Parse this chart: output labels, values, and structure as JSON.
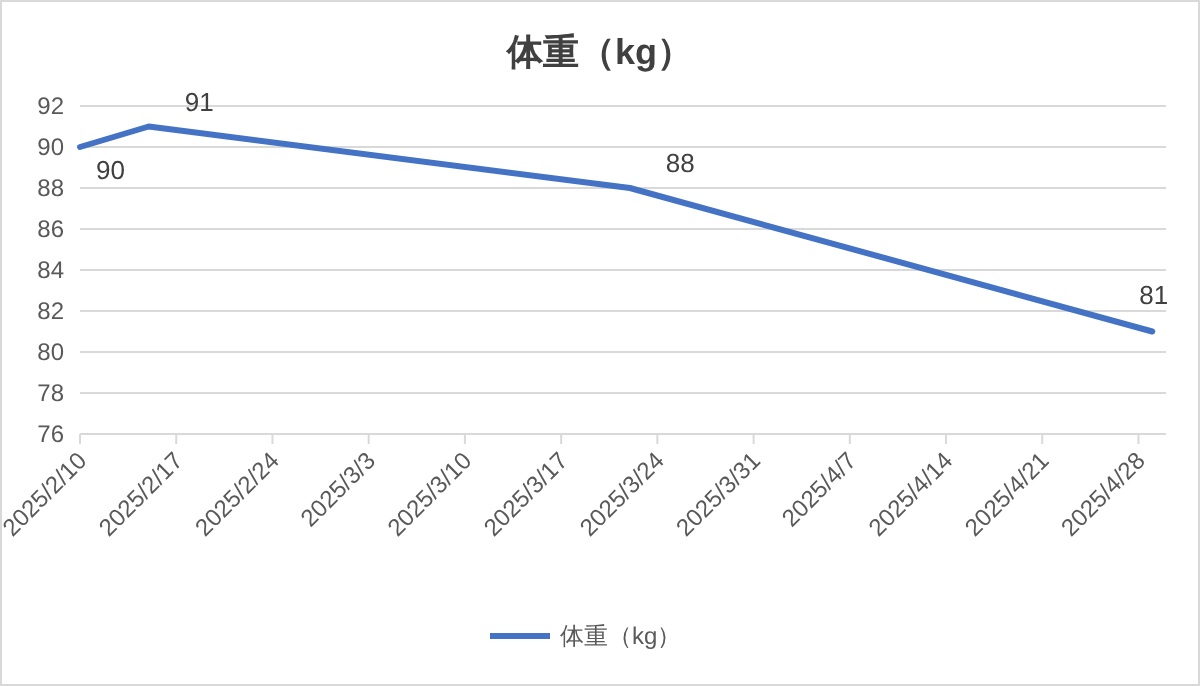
{
  "chart_data": {
    "type": "line",
    "title": "体重（kg）",
    "x": [
      "2025-02-10",
      "2025-02-15",
      "2025-03-22",
      "2025-04-29"
    ],
    "series": [
      {
        "name": "体重（kg）",
        "color": "#4472c4",
        "values": [
          90,
          91,
          88,
          81
        ]
      }
    ],
    "xlim": [
      "2025-02-10",
      "2025-04-30"
    ],
    "xticks": [
      {
        "value": "2025-02-10",
        "label": "2025/2/10"
      },
      {
        "value": "2025-02-17",
        "label": "2025/2/17"
      },
      {
        "value": "2025-02-24",
        "label": "2025/2/24"
      },
      {
        "value": "2025-03-03",
        "label": "2025/3/3"
      },
      {
        "value": "2025-03-10",
        "label": "2025/3/10"
      },
      {
        "value": "2025-03-17",
        "label": "2025/3/17"
      },
      {
        "value": "2025-03-24",
        "label": "2025/3/24"
      },
      {
        "value": "2025-03-31",
        "label": "2025/3/31"
      },
      {
        "value": "2025-04-07",
        "label": "2025/4/7"
      },
      {
        "value": "2025-04-14",
        "label": "2025/4/14"
      },
      {
        "value": "2025-04-21",
        "label": "2025/4/21"
      },
      {
        "value": "2025-04-28",
        "label": "2025/4/28"
      }
    ],
    "ylim": [
      76,
      92
    ],
    "yticks": [
      76,
      78,
      80,
      82,
      84,
      86,
      88,
      90,
      92
    ],
    "grid": "y",
    "legend": "bottom",
    "marker": "none",
    "line_style": "solid",
    "data_labels": true
  }
}
